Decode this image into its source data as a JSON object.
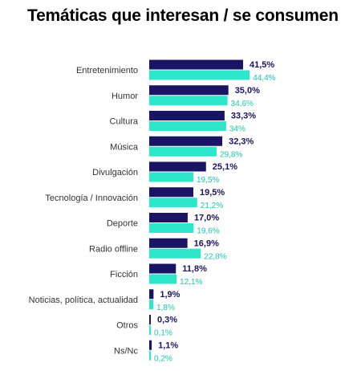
{
  "chart_data": {
    "type": "bar",
    "orientation": "horizontal",
    "title": "Temáticas que interesan / se consumen",
    "categories": [
      "Entretenimiento",
      "Humor",
      "Cultura",
      "Música",
      "Divulgación",
      "Tecnología / Innovación",
      "Deporte",
      "Radio offline",
      "Ficción",
      "Noticias, política, actualidad",
      "Otros",
      "Ns/Nc"
    ],
    "series": [
      {
        "values": [
          41.5,
          35.0,
          33.3,
          32.3,
          25.1,
          19.5,
          17.0,
          16.9,
          11.8,
          1.9,
          0.3,
          1.1
        ],
        "labels": [
          "41,5%",
          "35,0%",
          "33,3%",
          "32,3%",
          "25,1%",
          "19,5%",
          "17,0%",
          "16,9%",
          "11,8%",
          "1,9%",
          "0,3%",
          "1,1%"
        ],
        "color": "#1a1464"
      },
      {
        "values": [
          44.4,
          34.6,
          34.0,
          29.8,
          19.5,
          21.2,
          19.6,
          22.8,
          12.1,
          1.8,
          0.1,
          0.2
        ],
        "labels": [
          "44,4%",
          "34,6%",
          "34%",
          "29,8%",
          "19,5%",
          "21,2%",
          "19,6%",
          "22,8%",
          "12,1%",
          "1,8%",
          "0,1%",
          "0,2%"
        ],
        "color": "#2ee6c9"
      }
    ],
    "xlabel": "",
    "ylabel": "",
    "grid": false,
    "legend": "none"
  }
}
